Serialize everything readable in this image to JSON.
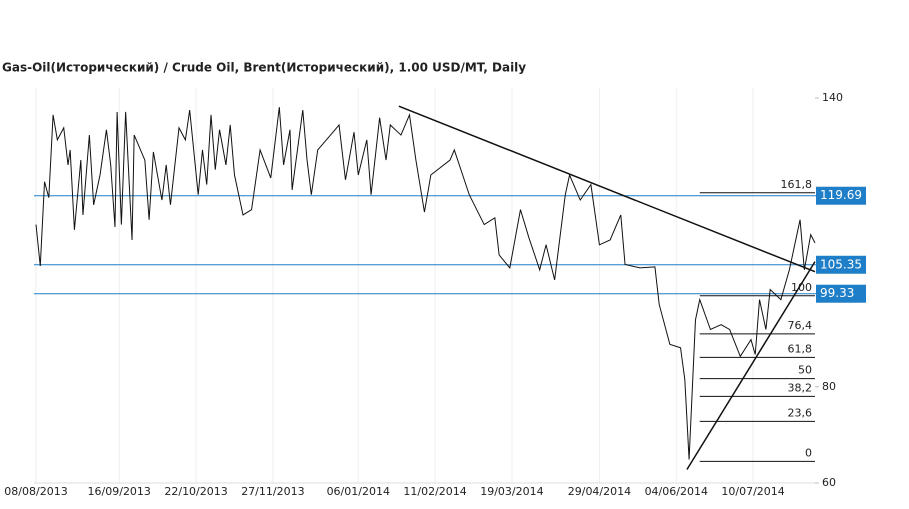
{
  "chart_data": {
    "type": "line",
    "title": "Gas-Oil(Исторический) / Crude Oil, Brent(Исторический), 1.00 USD/MT, Daily",
    "xlim": [
      "08/08/2013",
      "08/08/2014"
    ],
    "xticks": [
      "08/08/2013",
      "16/09/2013",
      "22/10/2013",
      "27/11/2013",
      "06/01/2014",
      "11/02/2014",
      "19/03/2014",
      "29/04/2014",
      "04/06/2014",
      "10/07/2014"
    ],
    "ylim": [
      60,
      140
    ],
    "yticks": [
      140,
      80,
      60
    ],
    "series": [
      {
        "color": "#111111",
        "x": [
          "08/08/2013",
          "10/08/2013",
          "12/08/2013",
          "14/08/2013",
          "16/08/2013",
          "18/08/2013",
          "21/08/2013",
          "23/08/2013",
          "24/08/2013",
          "26/08/2013",
          "29/08/2013",
          "30/08/2013",
          "02/09/2013",
          "04/09/2013",
          "07/09/2013",
          "10/09/2013",
          "12/09/2013",
          "14/09/2013",
          "15/09/2013",
          "17/09/2013",
          "19/09/2013",
          "22/09/2013",
          "23/09/2013",
          "28/09/2013",
          "30/09/2013",
          "02/10/2013",
          "06/10/2013",
          "08/10/2013",
          "10/10/2013",
          "14/10/2013",
          "17/10/2013",
          "19/10/2013",
          "23/10/2013",
          "25/10/2013",
          "27/10/2013",
          "29/10/2013",
          "31/10/2013",
          "02/11/2013",
          "05/11/2013",
          "07/11/2013",
          "09/11/2013",
          "13/11/2013",
          "17/11/2013",
          "21/11/2013",
          "26/11/2013",
          "30/11/2013",
          "02/12/2013",
          "05/12/2013",
          "06/12/2013",
          "11/12/2013",
          "13/12/2013",
          "15/12/2013",
          "18/12/2013",
          "24/12/2013",
          "28/12/2013",
          "31/12/2013",
          "04/01/2014",
          "06/01/2014",
          "10/01/2014",
          "12/01/2014",
          "16/01/2014",
          "19/01/2014",
          "21/01/2014",
          "26/01/2014",
          "30/01/2014",
          "02/02/2014",
          "06/02/2014",
          "09/02/2014",
          "18/02/2014",
          "20/02/2014",
          "27/02/2014",
          "06/03/2014",
          "11/03/2014",
          "13/03/2014",
          "18/03/2014",
          "23/03/2014",
          "27/03/2014",
          "01/04/2014",
          "04/04/2014",
          "08/04/2014",
          "13/04/2014",
          "15/04/2014",
          "20/04/2014",
          "25/04/2014",
          "29/04/2014",
          "04/05/2014",
          "09/05/2014",
          "11/05/2014",
          "18/05/2014",
          "25/05/2014",
          "27/05/2014",
          "01/06/2014",
          "06/06/2014",
          "08/06/2014",
          "10/06/2014",
          "13/06/2014",
          "15/06/2014",
          "20/06/2014",
          "25/06/2014",
          "29/06/2014",
          "04/07/2014",
          "09/07/2014",
          "11/07/2014",
          "13/07/2014",
          "16/07/2014",
          "18/07/2014",
          "23/07/2014",
          "27/07/2014",
          "01/08/2014",
          "03/08/2014",
          "06/08/2014",
          "08/08/2014"
        ],
        "values": [
          113.7,
          105.1,
          122.6,
          119.3,
          136.5,
          131.3,
          133.8,
          126.1,
          129.2,
          112.6,
          127.1,
          115.7,
          132.3,
          117.8,
          124.0,
          133.4,
          126.1,
          113.2,
          137.1,
          113.7,
          137.1,
          110.5,
          132.3,
          127.1,
          114.7,
          128.8,
          118.8,
          126.1,
          117.8,
          133.8,
          131.3,
          137.5,
          119.9,
          129.2,
          122.0,
          136.5,
          125.1,
          133.4,
          126.1,
          134.4,
          124.0,
          115.7,
          116.8,
          129.2,
          123.4,
          138.1,
          126.1,
          133.4,
          120.9,
          137.5,
          127.1,
          119.9,
          129.2,
          132.3,
          134.4,
          123.0,
          132.9,
          124.0,
          131.3,
          119.9,
          135.9,
          127.1,
          134.4,
          132.3,
          136.5,
          127.1,
          116.3,
          124.0,
          127.1,
          129.2,
          119.9,
          113.7,
          115.1,
          107.4,
          104.7,
          116.8,
          110.9,
          104.3,
          109.5,
          102.2,
          119.9,
          124.0,
          118.8,
          122.0,
          109.5,
          110.5,
          115.7,
          105.4,
          104.7,
          104.9,
          97.1,
          88.8,
          88.1,
          81.5,
          64.9,
          93.9,
          98.1,
          91.9,
          92.9,
          91.9,
          86.3,
          89.8,
          86.7,
          98.1,
          91.9,
          100.2,
          98.1,
          104.3,
          114.7,
          104.3,
          111.6,
          109.9
        ]
      }
    ],
    "levels": [
      119.69,
      105.35,
      99.33
    ],
    "level_color": "#1e7fc8",
    "fib_from": "15/06/2014",
    "fib_levels": [
      {
        "value": 120.3,
        "label": "161,8"
      },
      {
        "value": 98.9,
        "label": "100"
      },
      {
        "value": 91.0,
        "label": "76,4"
      },
      {
        "value": 86.1,
        "label": "61,8"
      },
      {
        "value": 81.7,
        "label": "50"
      },
      {
        "value": 78.0,
        "label": "38,2"
      },
      {
        "value": 72.8,
        "label": "23,6"
      },
      {
        "value": 64.5,
        "label": "0"
      }
    ],
    "trend_lines": [
      {
        "x": [
          "25/01/2014",
          "08/08/2014"
        ],
        "values": [
          138.3,
          103.9
        ]
      },
      {
        "x": [
          "09/06/2014",
          "08/08/2014"
        ],
        "values": [
          62.8,
          106.0
        ]
      }
    ]
  }
}
